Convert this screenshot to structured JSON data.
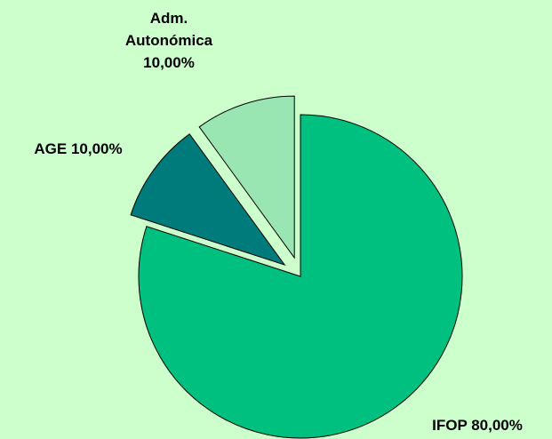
{
  "chart_data": {
    "type": "pie",
    "categories": [
      "IFOP",
      "AGE",
      "Adm. Autonómica"
    ],
    "values": [
      80,
      10,
      10
    ],
    "value_labels": [
      "80,00%",
      "10,00%",
      "10,00%"
    ],
    "colors": [
      "#00c080",
      "#007b7b",
      "#99e6b3"
    ],
    "explode": [
      false,
      true,
      true
    ]
  }
}
